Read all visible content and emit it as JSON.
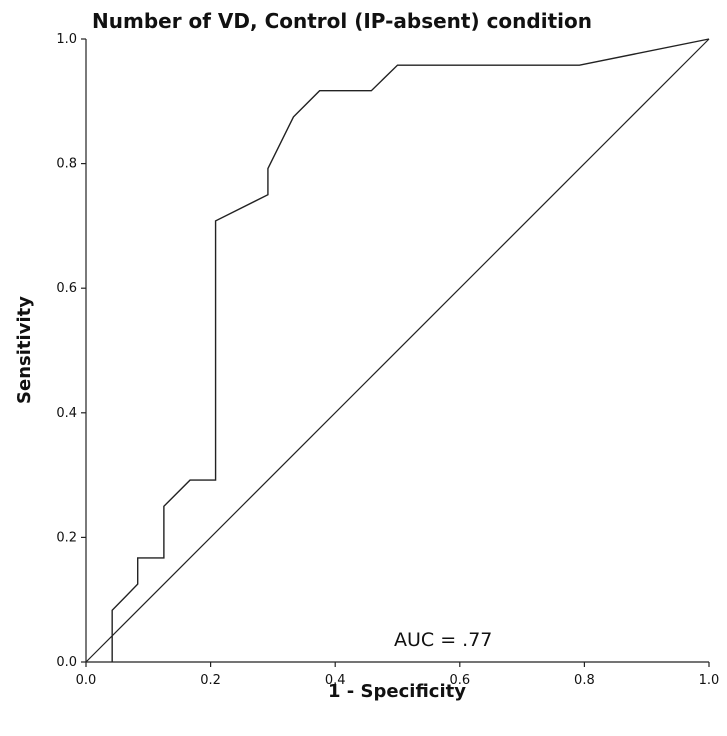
{
  "chart_data": {
    "type": "line",
    "title": "Number of VD, Control (IP-absent) condition",
    "xlabel": "1 - Specificity",
    "ylabel": "Sensitivity",
    "xlim": [
      0,
      1
    ],
    "ylim": [
      0,
      1
    ],
    "x_ticks": [
      "0.0",
      "0.2",
      "0.4",
      "0.6",
      "0.8",
      "1.0"
    ],
    "y_ticks": [
      "0.0",
      "0.2",
      "0.4",
      "0.6",
      "0.8",
      "1.0"
    ],
    "grid": false,
    "annotation": "AUC = .77",
    "series": [
      {
        "x": [
          0.042,
          0.042,
          0.083,
          0.083,
          0.125,
          0.125,
          0.167,
          0.208,
          0.208,
          0.292,
          0.292,
          0.333,
          0.375,
          0.458,
          0.5,
          0.792,
          1.0
        ],
        "y": [
          0.0,
          0.083,
          0.125,
          0.167,
          0.167,
          0.25,
          0.292,
          0.292,
          0.708,
          0.75,
          0.792,
          0.875,
          0.917,
          0.917,
          0.958,
          0.958,
          1.0
        ]
      },
      {
        "x": [
          0,
          1
        ],
        "y": [
          0,
          1
        ]
      }
    ]
  }
}
